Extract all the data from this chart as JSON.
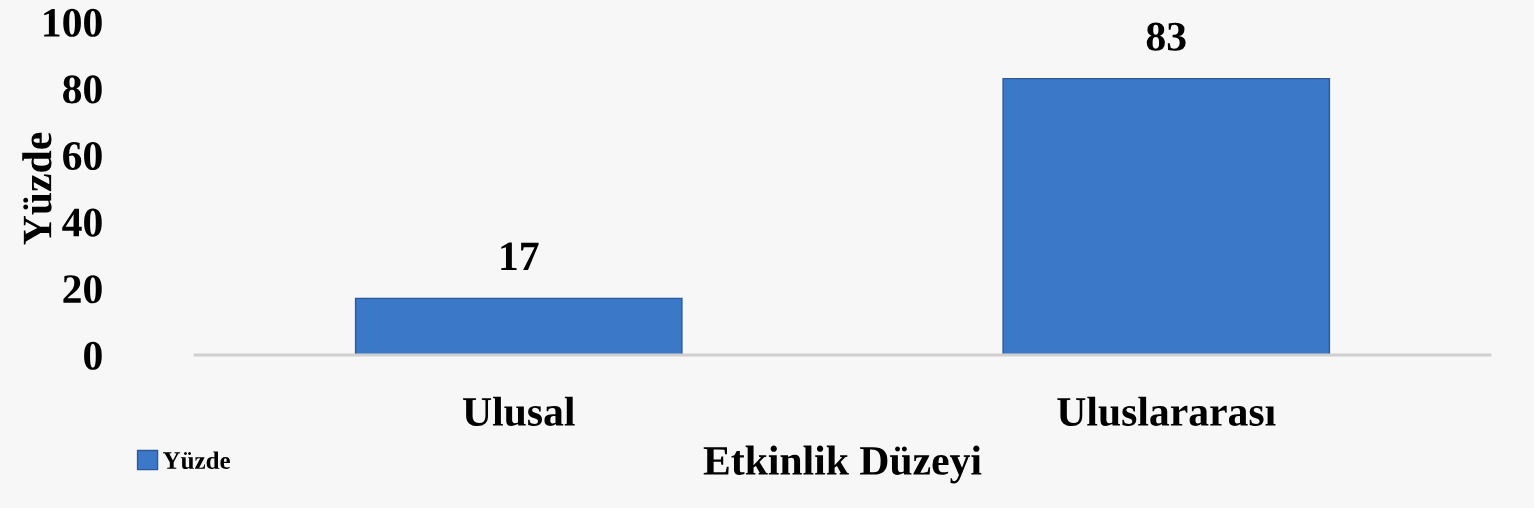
{
  "chart_data": {
    "type": "bar",
    "xlabel": "Etkinlik Düzeyi",
    "ylabel": "Yüzde",
    "categories": [
      "Ulusal",
      "Uluslararası"
    ],
    "series": [
      {
        "name": "Yüzde",
        "color": "#3c78c8",
        "values": [
          17,
          83
        ]
      }
    ],
    "ylim": [
      0,
      100
    ],
    "yticks": [
      0,
      20,
      40,
      60,
      80,
      100
    ],
    "data_labels": true,
    "grid": false,
    "legend": "bottom left"
  }
}
